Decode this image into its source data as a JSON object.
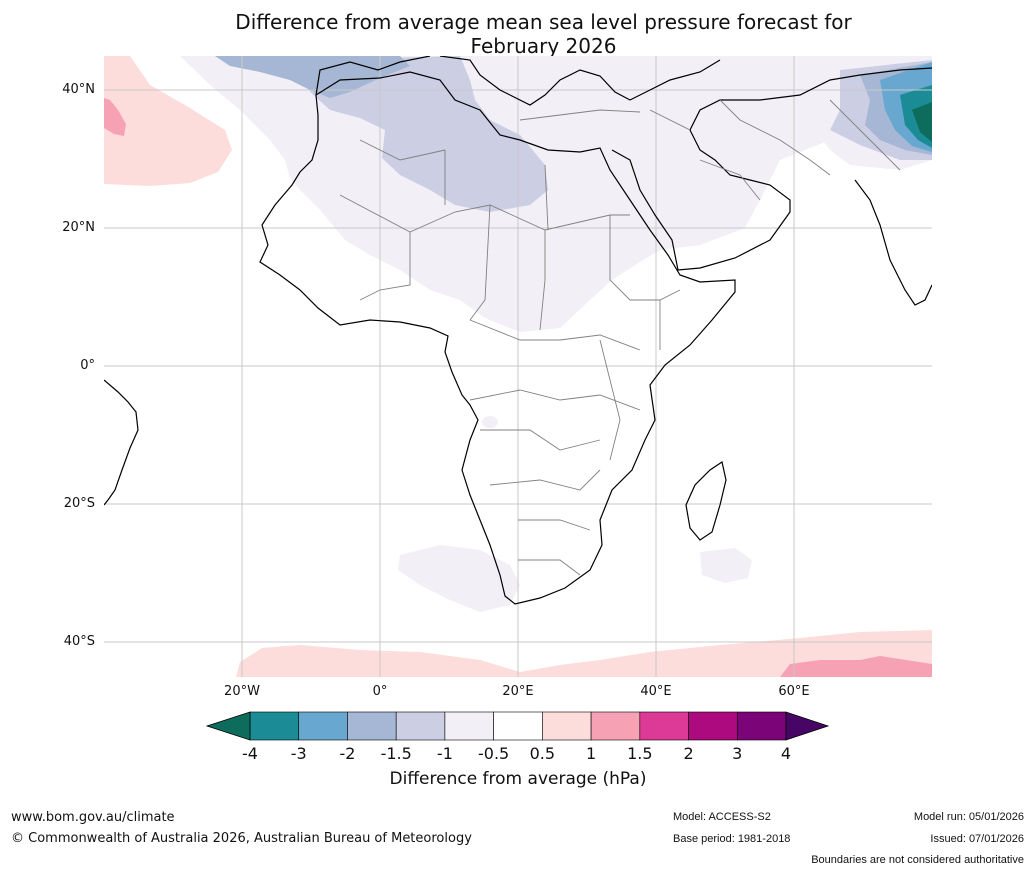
{
  "title": {
    "line1": "Difference from average mean sea level pressure forecast for",
    "line2": "February 2026"
  },
  "map": {
    "lat_labels": [
      "40°N",
      "20°N",
      "0°",
      "20°S",
      "40°S"
    ],
    "lon_labels": [
      "20°W",
      "0°",
      "20°E",
      "40°E",
      "60°E"
    ],
    "colors": {
      "land_border": "#000000",
      "country_border": "#808080",
      "grid": "#c8c8c8",
      "background": "#ffffff"
    }
  },
  "colorbar": {
    "ticks": [
      "-4",
      "-3",
      "-2",
      "-1.5",
      "-1",
      "-0.5",
      "0.5",
      "1",
      "1.5",
      "2",
      "3",
      "4"
    ],
    "colors": [
      "#1b8c95",
      "#68a8d0",
      "#a5b7d4",
      "#cccee4",
      "#f2eff6",
      "#ffffff",
      "#fddcdc",
      "#f7a1b5",
      "#dc3a96",
      "#ad0a7f",
      "#7c0479"
    ],
    "under_color": "#0e6c5c",
    "over_color": "#470565",
    "label": "Difference from average (hPa)"
  },
  "footer": {
    "url": "www.bom.gov.au/climate",
    "copyright": "© Commonwealth of Australia 2026, Australian Bureau of Meteorology",
    "model": "Model: ACCESS-S2",
    "base_period": "Base period: 1981-2018",
    "model_run": "Model run: 05/01/2026",
    "issued": "Issued: 07/01/2026",
    "disclaimer": "Boundaries are not considered authoritative"
  }
}
